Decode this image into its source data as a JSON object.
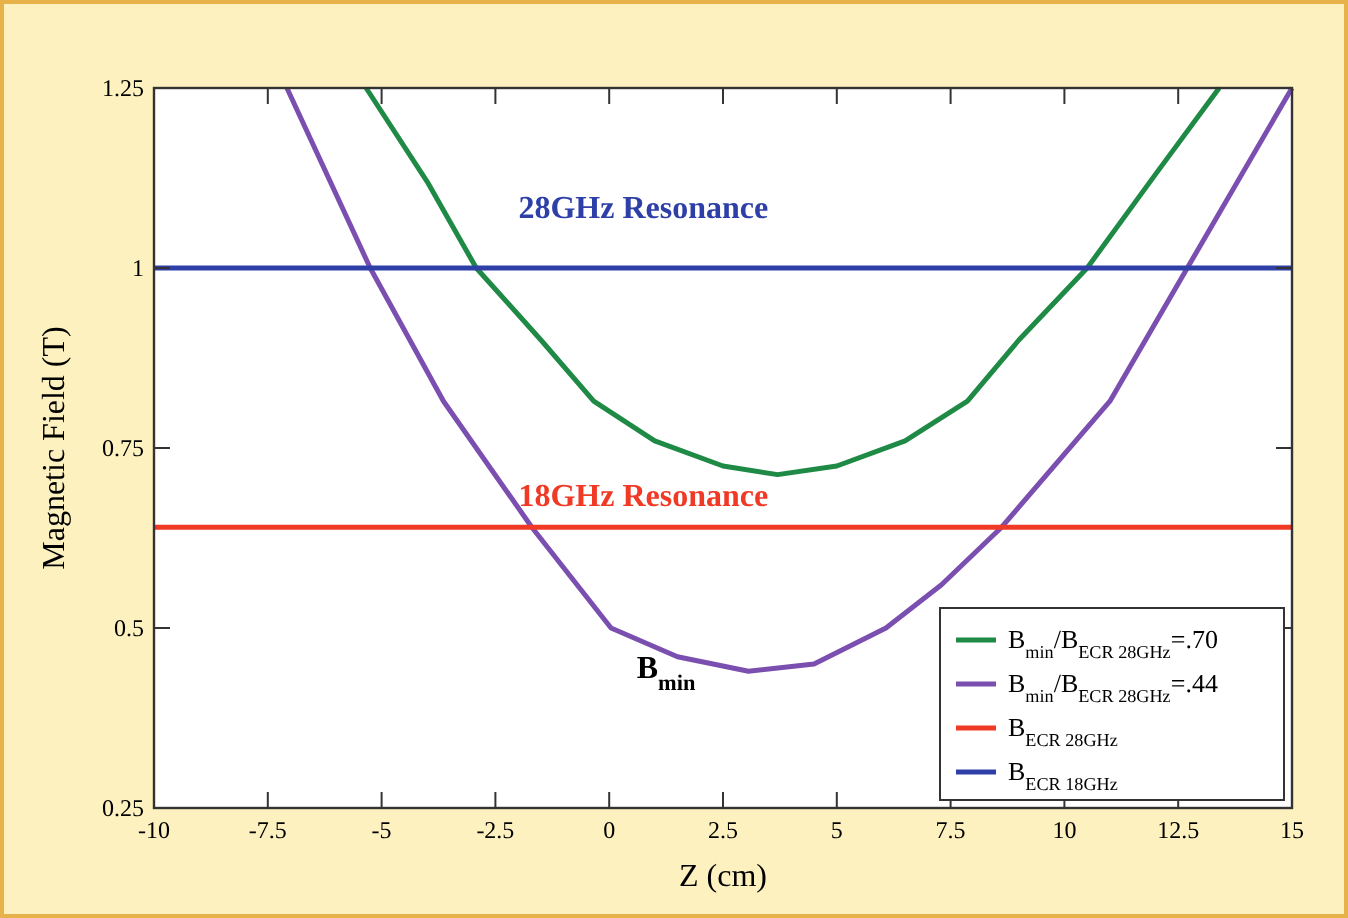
{
  "chart_data": {
    "type": "line",
    "xlabel": "Z (cm)",
    "ylabel": "Magnetic Field (T)",
    "xlim": [
      -10,
      15
    ],
    "xticks": [
      -10,
      -7.5,
      -5,
      -2.5,
      0,
      2.5,
      5,
      7.5,
      10,
      12.5,
      15
    ],
    "ylim": [
      0.25,
      1.25
    ],
    "yticks": [
      0.25,
      0.5,
      0.75,
      1,
      1.25
    ],
    "grid": false,
    "legend": "bottom right",
    "marker": "none",
    "line_style": "solid",
    "series": [
      {
        "name": "B$_{min}$/B$_{ECR 28GHz}$=.70",
        "color": "#1e8a45",
        "x": [
          -5.34,
          -4,
          -2.92,
          -1.5,
          -0.34,
          1,
          2.5,
          3.7,
          5,
          6.5,
          7.87,
          9,
          10.5,
          12,
          13.4
        ],
        "values": [
          1.25,
          1.12,
          1.0,
          0.9,
          0.815,
          0.76,
          0.725,
          0.713,
          0.725,
          0.76,
          0.815,
          0.9,
          1.0,
          1.13,
          1.25
        ]
      },
      {
        "name": "B$_{min}$/B$_{ECR 28GHz}$=.44",
        "color": "#7b4fb0",
        "x": [
          -7.08,
          -5.25,
          -3.64,
          -1.7,
          0.04,
          1.5,
          3.06,
          4.5,
          6.08,
          7.3,
          8.62,
          11,
          12.7,
          15
        ],
        "values": [
          1.25,
          1.0,
          0.815,
          0.64,
          0.5,
          0.46,
          0.44,
          0.45,
          0.5,
          0.56,
          0.64,
          0.815,
          1.0,
          1.25
        ]
      },
      {
        "name": "B$_{ECR 28GHz}$",
        "color": "#f03a26",
        "x": [
          -10,
          15
        ],
        "values": [
          0.64,
          0.64
        ]
      },
      {
        "name": "B$_{ECR 18GHz}$",
        "color": "#2e40a8",
        "x": [
          -10,
          15
        ],
        "values": [
          1,
          1
        ]
      }
    ],
    "annotations": [
      "28GHz Resonance",
      "18GHz Resonance",
      "B$_{min}$"
    ]
  }
}
